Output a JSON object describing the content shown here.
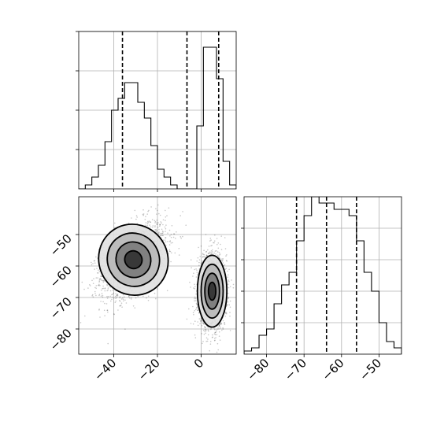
{
  "chart_data": [
    {
      "type": "histogram",
      "panel": "top-left marginal",
      "variable": "x",
      "bin_edges": [
        -56,
        -53,
        -50,
        -47,
        -44,
        -41,
        -38,
        -35,
        -32,
        -29,
        -26,
        -23,
        -20,
        -17,
        -14,
        -11,
        -8,
        -5,
        -2,
        1,
        4,
        7,
        10,
        13,
        16
      ],
      "counts": [
        0,
        1,
        3,
        6,
        12,
        20,
        23,
        27,
        27,
        22,
        18,
        11,
        5,
        3,
        1,
        0,
        0,
        0,
        16,
        36,
        36,
        28,
        7,
        1
      ],
      "quantiles": [
        -36,
        -6.5,
        8
      ],
      "xlim": [
        -56,
        16
      ],
      "ylim": [
        0,
        40
      ],
      "yticks": [
        10,
        20,
        30,
        40
      ],
      "grid": true,
      "tick_labels_shown": false
    },
    {
      "type": "scatter-density",
      "panel": "bottom-left joint",
      "x_variable": "x",
      "y_variable": "y",
      "xlim": [
        -56,
        16
      ],
      "ylim": [
        -88,
        -38
      ],
      "xticks": [
        -40,
        -20,
        0
      ],
      "xtick_labels": [
        "−40",
        "−20",
        "0"
      ],
      "yticks": [
        -50,
        -60,
        -70,
        -80
      ],
      "ytick_labels": [
        "−50",
        "−60",
        "−70",
        "−80"
      ],
      "clusters": [
        {
          "center": [
            -31,
            -58
          ],
          "sd_x": 7.5,
          "sd_y": 6.0,
          "correlation": 0.45,
          "points": 2000
        },
        {
          "center": [
            5,
            -68
          ],
          "sd_x": 3.2,
          "sd_y": 6.0,
          "correlation": 0.0,
          "points": 1800
        }
      ],
      "contour_levels": [
        "0.5 sigma",
        "1 sigma",
        "1.5 sigma",
        "2 sigma"
      ],
      "grid": true
    },
    {
      "type": "histogram",
      "panel": "bottom-right marginal",
      "variable": "y",
      "bin_edges": [
        -86,
        -84,
        -82,
        -80,
        -78,
        -76,
        -74,
        -72,
        -70,
        -68,
        -66,
        -64,
        -62,
        -60,
        -58,
        -56,
        -54,
        -52,
        -50,
        -48,
        -46,
        -44
      ],
      "counts": [
        0.5,
        1,
        3,
        4,
        8,
        11,
        13,
        18,
        22,
        25,
        24,
        24,
        23,
        23,
        22,
        18,
        13,
        10,
        5,
        2,
        1
      ],
      "quantiles": [
        -72,
        -64,
        -56
      ],
      "xlim": [
        -86,
        -44
      ],
      "ylim": [
        0,
        25
      ],
      "xticks": [
        -80,
        -70,
        -60,
        -50
      ],
      "xtick_labels": [
        "−80",
        "−70",
        "−60",
        "−50"
      ],
      "yticks": [
        5,
        10,
        15,
        20
      ],
      "grid": true,
      "ytick_labels_shown": false
    }
  ]
}
